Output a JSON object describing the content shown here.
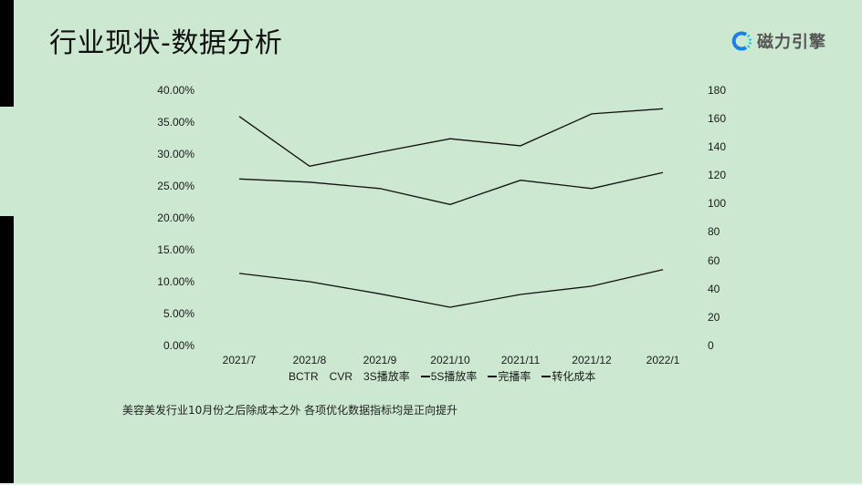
{
  "slide": {
    "title": "行业现状-数据分析",
    "logo_text": "磁力引擎",
    "logo_icon": "spinner-c-icon",
    "background_color": "#cde8d0",
    "note": "美容美发行业10月份之后除成本之外 各项优化数据指标均是正向提升"
  },
  "chart_data": {
    "type": "line",
    "title": "",
    "xlabel": "",
    "ylabel": "",
    "categories": [
      "2021/7",
      "2021/8",
      "2021/9",
      "2021/10",
      "2021/11",
      "2021/12",
      "2022/1"
    ],
    "left_axis": {
      "ticks": [
        "40.00%",
        "35.00%",
        "30.00%",
        "25.00%",
        "20.00%",
        "15.00%",
        "10.00%",
        "5.00%",
        "0.00%"
      ],
      "ylim": [
        0,
        40
      ]
    },
    "right_axis": {
      "ticks": [
        "180",
        "160",
        "140",
        "120",
        "100",
        "80",
        "60",
        "40",
        "20",
        "0"
      ],
      "ylim": [
        0,
        180
      ]
    },
    "series": [
      {
        "name": "line-top",
        "axis": "left",
        "values": [
          35.9,
          28.1,
          30.3,
          32.4,
          31.3,
          36.3,
          37.1
        ],
        "values_right_axis": [
          161.5,
          126.5,
          136.1,
          145.8,
          140.6,
          163.4,
          167.3
        ]
      },
      {
        "name": "line-middle",
        "axis": "left",
        "values": [
          26.1,
          25.6,
          24.6,
          22.1,
          25.9,
          24.6,
          27.1
        ],
        "values_right_axis": [
          117.6,
          115.0,
          110.5,
          99.6,
          116.4,
          110.5,
          122.1
        ]
      },
      {
        "name": "line-bottom",
        "axis": "left",
        "values": [
          11.3,
          10.0,
          8.1,
          6.0,
          8.0,
          9.3,
          11.9
        ],
        "values_right_axis": [
          50.8,
          45.0,
          36.6,
          27.0,
          36.0,
          41.8,
          53.4
        ]
      }
    ],
    "legend": [
      {
        "label": "BCTR",
        "marker": false
      },
      {
        "label": "CVR",
        "marker": false
      },
      {
        "label": "3S播放率",
        "marker": false
      },
      {
        "label": "5S播放率",
        "marker": true
      },
      {
        "label": "完播率",
        "marker": true
      },
      {
        "label": "转化成本",
        "marker": true
      }
    ],
    "legend_position": "bottom",
    "grid": false,
    "line_color": "#111111"
  }
}
